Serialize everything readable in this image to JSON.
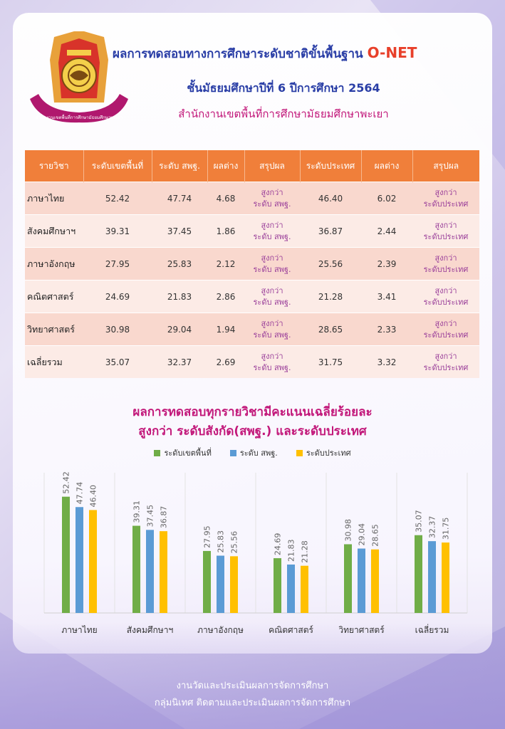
{
  "header": {
    "title_line1": "ผลการทดสอบทางการศึกษาระดับชาติขั้นพื้นฐาน",
    "title_onet": "O-NET",
    "title_line2": "ชั้นมัธยมศึกษาปีที่ 6 ปีการศึกษา 2564",
    "title_line3": "สำนักงานเขตพื้นที่การศึกษามัธยมศึกษาพะเยา",
    "seal_text": "สำนักงานเขตพื้นที่การศึกษามัธยมศึกษาพะเยา"
  },
  "table": {
    "headers": [
      "รายวิชา",
      "ระดับเขตพื้นที่",
      "ระดับ สพฐ.",
      "ผลต่าง",
      "สรุปผล",
      "ระดับประเทศ",
      "ผลต่าง",
      "สรุปผล"
    ],
    "rows": [
      {
        "subject": "ภาษาไทย",
        "area": "52.42",
        "obec": "47.74",
        "diff1": "4.68",
        "sum1_a": "สูงกว่า",
        "sum1_b": "ระดับ สพฐ.",
        "nation": "46.40",
        "diff2": "6.02",
        "sum2_a": "สูงกว่า",
        "sum2_b": "ระดับประเทศ"
      },
      {
        "subject": "สังคมศึกษาฯ",
        "area": "39.31",
        "obec": "37.45",
        "diff1": "1.86",
        "sum1_a": "สูงกว่า",
        "sum1_b": "ระดับ สพฐ.",
        "nation": "36.87",
        "diff2": "2.44",
        "sum2_a": "สูงกว่า",
        "sum2_b": "ระดับประเทศ"
      },
      {
        "subject": "ภาษาอังกฤษ",
        "area": "27.95",
        "obec": "25.83",
        "diff1": "2.12",
        "sum1_a": "สูงกว่า",
        "sum1_b": "ระดับ สพฐ.",
        "nation": "25.56",
        "diff2": "2.39",
        "sum2_a": "สูงกว่า",
        "sum2_b": "ระดับประเทศ"
      },
      {
        "subject": "คณิตศาสตร์",
        "area": "24.69",
        "obec": "21.83",
        "diff1": "2.86",
        "sum1_a": "สูงกว่า",
        "sum1_b": "ระดับ สพฐ.",
        "nation": "21.28",
        "diff2": "3.41",
        "sum2_a": "สูงกว่า",
        "sum2_b": "ระดับประเทศ"
      },
      {
        "subject": "วิทยาศาสตร์",
        "area": "30.98",
        "obec": "29.04",
        "diff1": "1.94",
        "sum1_a": "สูงกว่า",
        "sum1_b": "ระดับ สพฐ.",
        "nation": "28.65",
        "diff2": "2.33",
        "sum2_a": "สูงกว่า",
        "sum2_b": "ระดับประเทศ"
      },
      {
        "subject": "เฉลี่ยรวม",
        "area": "35.07",
        "obec": "32.37",
        "diff1": "2.69",
        "sum1_a": "สูงกว่า",
        "sum1_b": "ระดับ สพฐ.",
        "nation": "31.75",
        "diff2": "3.32",
        "sum2_a": "สูงกว่า",
        "sum2_b": "ระดับประเทศ"
      }
    ]
  },
  "chart_data": {
    "type": "bar",
    "title": "ผลการทดสอบทุกรายวิชามีคะแนนเฉลี่ยร้อยละ",
    "subtitle": "สูงกว่า ระดับสังกัด(สพฐ.) และระดับประเทศ",
    "categories": [
      "ภาษาไทย",
      "สังคมศึกษาฯ",
      "ภาษาอังกฤษ",
      "คณิตศาสตร์",
      "วิทยาศาสตร์",
      "เฉลี่ยรวม"
    ],
    "series": [
      {
        "name": "ระดับเขตพื้นที่",
        "color": "#70ad47",
        "values": [
          52.42,
          39.31,
          27.95,
          24.69,
          30.98,
          35.07
        ]
      },
      {
        "name": "ระดับ สพฐ.",
        "color": "#5b9bd5",
        "values": [
          47.74,
          37.45,
          25.83,
          21.83,
          29.04,
          32.37
        ]
      },
      {
        "name": "ระดับประเทศ",
        "color": "#ffc000",
        "values": [
          46.4,
          36.87,
          25.56,
          21.28,
          28.65,
          31.75
        ]
      }
    ],
    "ylim": [
      0,
      60
    ],
    "grid": false,
    "legend": "top-center",
    "data_labels": "rotated-above"
  },
  "footer": {
    "line1": "งานวัดและประเมินผลการจัดการศึกษา",
    "line2": "กลุ่มนิเทศ ติดตามและประเมินผลการจัดการศึกษา"
  }
}
